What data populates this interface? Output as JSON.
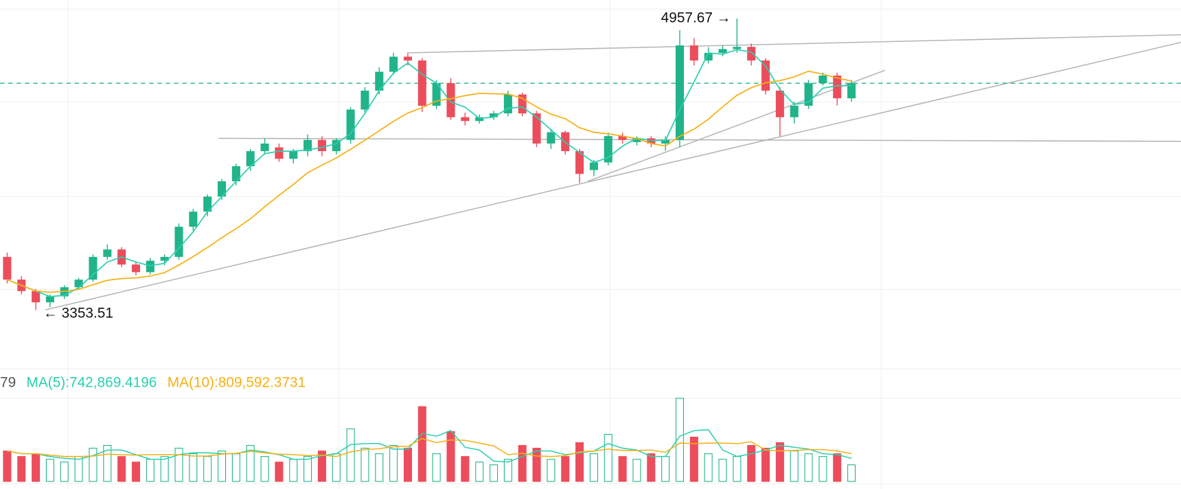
{
  "chart_data": {
    "type": "candlestick",
    "up_color": "#21b38a",
    "down_color": "#ec4d5c",
    "ma_colors": [
      "#2ccfb0",
      "#f5b014"
    ],
    "ylim": [
      3030,
      5060
    ],
    "max_label": "4957.67 →",
    "min_label": "← 3353.51",
    "candles": [
      [
        3646,
        3670,
        3500,
        3521
      ],
      [
        3521,
        3540,
        3440,
        3458
      ],
      [
        3458,
        3470,
        3353.51,
        3396
      ],
      [
        3396,
        3440,
        3370,
        3429
      ],
      [
        3429,
        3490,
        3415,
        3479
      ],
      [
        3479,
        3530,
        3465,
        3521
      ],
      [
        3521,
        3660,
        3510,
        3646
      ],
      [
        3646,
        3715,
        3630,
        3687
      ],
      [
        3687,
        3700,
        3590,
        3604
      ],
      [
        3604,
        3620,
        3545,
        3562
      ],
      [
        3562,
        3640,
        3550,
        3625
      ],
      [
        3625,
        3660,
        3600,
        3646
      ],
      [
        3646,
        3830,
        3630,
        3812
      ],
      [
        3812,
        3910,
        3790,
        3895
      ],
      [
        3895,
        3990,
        3870,
        3978
      ],
      [
        3978,
        4075,
        3960,
        4062
      ],
      [
        4062,
        4160,
        4040,
        4145
      ],
      [
        4145,
        4240,
        4120,
        4228
      ],
      [
        4228,
        4300,
        4210,
        4270
      ],
      [
        4249,
        4270,
        4170,
        4186
      ],
      [
        4186,
        4240,
        4160,
        4228
      ],
      [
        4228,
        4320,
        4200,
        4290
      ],
      [
        4290,
        4310,
        4200,
        4228
      ],
      [
        4228,
        4300,
        4210,
        4290
      ],
      [
        4290,
        4470,
        4270,
        4457
      ],
      [
        4457,
        4580,
        4440,
        4561
      ],
      [
        4561,
        4690,
        4540,
        4665
      ],
      [
        4665,
        4770,
        4650,
        4748
      ],
      [
        4748,
        4765,
        4700,
        4727
      ],
      [
        4727,
        4740,
        4444,
        4478
      ],
      [
        4478,
        4620,
        4460,
        4602
      ],
      [
        4602,
        4630,
        4400,
        4415
      ],
      [
        4415,
        4440,
        4370,
        4394
      ],
      [
        4394,
        4430,
        4380,
        4415
      ],
      [
        4415,
        4450,
        4400,
        4436
      ],
      [
        4436,
        4560,
        4420,
        4540
      ],
      [
        4540,
        4550,
        4420,
        4436
      ],
      [
        4436,
        4450,
        4250,
        4270
      ],
      [
        4270,
        4350,
        4240,
        4332
      ],
      [
        4332,
        4340,
        4210,
        4228
      ],
      [
        4228,
        4240,
        4053,
        4103
      ],
      [
        4124,
        4180,
        4090,
        4166
      ],
      [
        4166,
        4330,
        4150,
        4311
      ],
      [
        4311,
        4330,
        4270,
        4290
      ],
      [
        4278,
        4310,
        4260,
        4299
      ],
      [
        4299,
        4310,
        4250,
        4270
      ],
      [
        4270,
        4310,
        4230,
        4290
      ],
      [
        4290,
        4894,
        4250,
        4810
      ],
      [
        4810,
        4850,
        4700,
        4727
      ],
      [
        4727,
        4800,
        4710,
        4769
      ],
      [
        4769,
        4810,
        4750,
        4790
      ],
      [
        4790,
        4957.67,
        4770,
        4802
      ],
      [
        4802,
        4820,
        4700,
        4727
      ],
      [
        4727,
        4740,
        4540,
        4561
      ],
      [
        4561,
        4580,
        4311,
        4415
      ],
      [
        4415,
        4500,
        4380,
        4478
      ],
      [
        4478,
        4620,
        4460,
        4602
      ],
      [
        4602,
        4660,
        4590,
        4644
      ],
      [
        4644,
        4660,
        4480,
        4519
      ],
      [
        4519,
        4620,
        4500,
        4602
      ]
    ],
    "volume_lim": [
      0,
      3000000
    ],
    "volumes": [
      1100000,
      900000,
      1000000,
      800000,
      700000,
      900000,
      1200000,
      1300000,
      900000,
      700000,
      800000,
      900000,
      1200000,
      1000000,
      900000,
      1100000,
      1000000,
      1300000,
      900000,
      700000,
      800000,
      900000,
      1100000,
      1000000,
      1900000,
      1200000,
      1000000,
      1300000,
      1200000,
      2700000,
      1000000,
      1800000,
      900000,
      700000,
      600000,
      800000,
      1300000,
      1200000,
      800000,
      900000,
      1400000,
      1000000,
      1700000,
      900000,
      800000,
      1000000,
      900000,
      3000000,
      1600000,
      1000000,
      800000,
      900000,
      1300000,
      1200000,
      1400000,
      1100000,
      1000000,
      900000,
      1000000,
      600000
    ],
    "volume_legend": [
      {
        "label": "79",
        "color": "#555555"
      },
      {
        "label": "MA(5):742,869.4196",
        "color": "#2ccfb0"
      },
      {
        "label": "MA(10):809,592.3731",
        "color": "#f5b014"
      }
    ]
  }
}
